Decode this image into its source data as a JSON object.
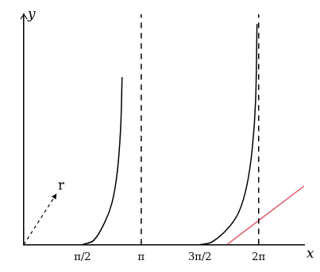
{
  "chart_data": {
    "type": "line",
    "x_label": "x",
    "y_label": "y",
    "xlim": [
      0,
      7.5
    ],
    "ylim": [
      0,
      5.5
    ],
    "xticks": [
      {
        "value": 1.5708,
        "label": "π/2"
      },
      {
        "value": 3.1416,
        "label": "π"
      },
      {
        "value": 4.7124,
        "label": "3π/2"
      },
      {
        "value": 6.2832,
        "label": "2π"
      }
    ],
    "tick_labels": "x",
    "grid": false,
    "series": [
      {
        "color": "#000000",
        "line_style": "solid",
        "x": [
          1.5708,
          1.87,
          2.16,
          2.36,
          2.5,
          2.59,
          2.63
        ],
        "values": [
          0,
          0.1,
          0.52,
          1.0,
          1.73,
          2.77,
          4.0
        ]
      },
      {
        "color": "#000000",
        "line_style": "solid",
        "x": [
          4.7124,
          5.03,
          5.45,
          5.76,
          5.97,
          6.11,
          6.2,
          6.24
        ],
        "values": [
          0,
          0.06,
          0.375,
          0.79,
          1.42,
          2.27,
          3.4,
          5.27
        ]
      },
      {
        "color": "#000000",
        "line_style": "dashed",
        "x": [
          3.1416,
          3.1416
        ],
        "values": [
          0,
          5.5
        ]
      },
      {
        "color": "#000000",
        "line_style": "dashed",
        "x": [
          6.2832,
          6.2832
        ],
        "values": [
          0,
          5.5
        ]
      },
      {
        "color": "#e06070",
        "line_style": "solid",
        "x": [
          5.44,
          7.5
        ],
        "values": [
          0,
          1.4
        ]
      }
    ],
    "annotations": [
      {
        "text": "r",
        "x": 1.0,
        "y": 1.4
      }
    ]
  }
}
